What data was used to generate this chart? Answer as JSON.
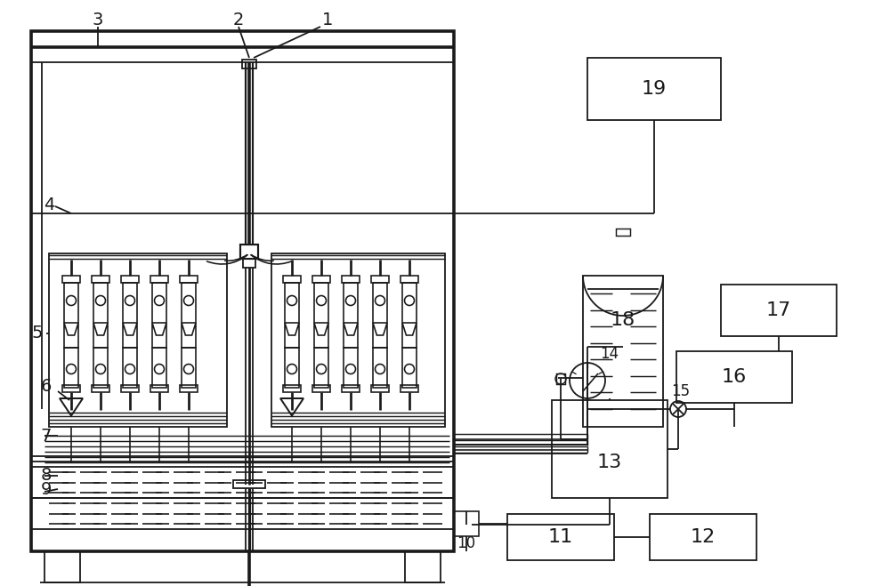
{
  "bg_color": "#ffffff",
  "line_color": "#1a1a1a",
  "lw": 1.3,
  "fig_width": 10.0,
  "fig_height": 6.59
}
